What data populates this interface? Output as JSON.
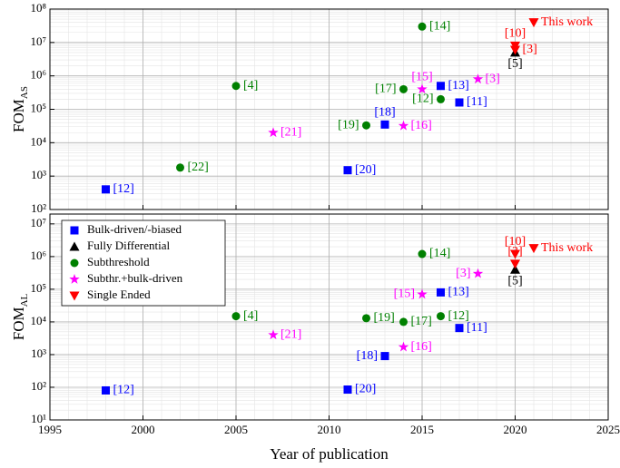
{
  "chart_data": [
    {
      "type": "scatter",
      "ylabel": "FOM",
      "ylabel_sub": "AS",
      "log_y": true,
      "grid": true,
      "minor_grid": true,
      "xticklabels": false,
      "xlim": [
        1995,
        2025
      ],
      "xticks": [
        1995,
        2000,
        2005,
        2010,
        2015,
        2020,
        2025
      ],
      "ylim": [
        100,
        100000000
      ],
      "yticks": [
        {
          "value": 100,
          "label": "10²"
        },
        {
          "value": 1000,
          "label": "10³"
        },
        {
          "value": 10000,
          "label": "10⁴"
        },
        {
          "value": 100000,
          "label": "10⁵"
        },
        {
          "value": 1000000,
          "label": "10⁶"
        },
        {
          "value": 10000000,
          "label": "10⁷"
        },
        {
          "value": 100000000,
          "label": "10⁸"
        }
      ],
      "series": [
        {
          "color": "#0000ff",
          "marker": "square",
          "x": [
            1998,
            2011,
            2013,
            2016,
            2017
          ],
          "values": [
            400,
            1500,
            35000,
            500000,
            160000
          ],
          "labels": [
            "[12]",
            "[20]",
            "[18]",
            "[13]",
            "[11]"
          ]
        },
        {
          "color": "#000000",
          "marker": "triangle-up",
          "x": [
            2020
          ],
          "values": [
            5000000
          ],
          "labels": [
            "[5]"
          ]
        },
        {
          "color": "#008000",
          "marker": "circle",
          "x": [
            2002,
            2005,
            2012,
            2014,
            2015,
            2016
          ],
          "values": [
            1800,
            500000,
            33000,
            400000,
            30000000,
            200000
          ],
          "labels": [
            "[22]",
            "[4]",
            "[19]",
            "[17]",
            "[14]",
            "[12]"
          ]
        },
        {
          "color": "#ff00ff",
          "marker": "star",
          "x": [
            2007,
            2014,
            2015,
            2018
          ],
          "values": [
            20000,
            32000,
            400000,
            800000
          ],
          "labels": [
            "[21]",
            "[16]",
            "[15]",
            "[3]"
          ]
        },
        {
          "color": "#ff0000",
          "marker": "triangle-down",
          "x": [
            2020,
            2020,
            2021
          ],
          "values": [
            8000000,
            6000000,
            40000000
          ],
          "labels": [
            "[10]",
            "[3]",
            "This work"
          ]
        }
      ]
    },
    {
      "type": "scatter",
      "ylabel": "FOM",
      "ylabel_sub": "AL",
      "xlabel": "Year of publication",
      "log_y": true,
      "grid": true,
      "minor_grid": true,
      "xticklabels": true,
      "legend": "upper left",
      "xlim": [
        1995,
        2025
      ],
      "xticks": [
        1995,
        2000,
        2005,
        2010,
        2015,
        2020,
        2025
      ],
      "ylim": [
        10,
        20000000
      ],
      "yticks": [
        {
          "value": 10,
          "label": "10¹"
        },
        {
          "value": 100,
          "label": "10²"
        },
        {
          "value": 1000,
          "label": "10³"
        },
        {
          "value": 10000,
          "label": "10⁴"
        },
        {
          "value": 100000,
          "label": "10⁵"
        },
        {
          "value": 1000000,
          "label": "10⁶"
        },
        {
          "value": 10000000,
          "label": "10⁷"
        }
      ],
      "series": [
        {
          "name": "Bulk-driven/-biased",
          "color": "#0000ff",
          "marker": "square",
          "x": [
            1998,
            2011,
            2013,
            2016,
            2017
          ],
          "values": [
            80,
            85,
            900,
            80000,
            6500
          ],
          "labels": [
            "[12]",
            "[20]",
            "[18]",
            "[13]",
            "[11]"
          ]
        },
        {
          "name": "Fully Differential",
          "color": "#000000",
          "marker": "triangle-up",
          "x": [
            2020
          ],
          "values": [
            400000
          ],
          "labels": [
            "[5]"
          ]
        },
        {
          "name": "Subthreshold",
          "color": "#008000",
          "marker": "circle",
          "x": [
            2005,
            2012,
            2014,
            2015,
            2016
          ],
          "values": [
            15000,
            13000,
            10000,
            1200000,
            15000
          ],
          "labels": [
            "[4]",
            "[19]",
            "[17]",
            "[14]",
            "[12]"
          ]
        },
        {
          "name": "Subthr.+bulk-driven",
          "color": "#ff00ff",
          "marker": "star",
          "x": [
            2007,
            2014,
            2015,
            2018
          ],
          "values": [
            4000,
            1700,
            70000,
            300000
          ],
          "labels": [
            "[21]",
            "[16]",
            "[15]",
            "[3]"
          ]
        },
        {
          "name": "Single Ended",
          "color": "#ff0000",
          "marker": "triangle-down",
          "x": [
            2020,
            2020,
            2021
          ],
          "values": [
            1200000,
            600000,
            1800000
          ],
          "labels": [
            "[10]",
            "[3]",
            "This work"
          ]
        }
      ]
    }
  ]
}
